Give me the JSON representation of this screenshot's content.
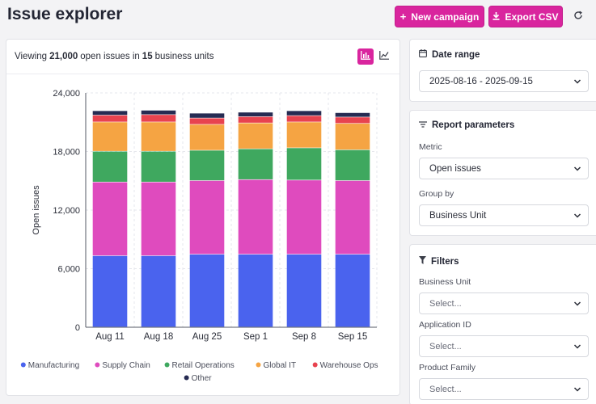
{
  "header": {
    "title": "Issue explorer",
    "new_campaign_label": "New campaign",
    "export_label": "Export CSV"
  },
  "summary": {
    "prefix": "Viewing",
    "count": "21,000",
    "middle": "open issues in",
    "units": "15",
    "suffix": "business units"
  },
  "sidebar": {
    "date_range": {
      "title": "Date range",
      "value": "2025-08-16 - 2025-09-15"
    },
    "report_parameters": {
      "title": "Report parameters",
      "metric_label": "Metric",
      "metric_value": "Open issues",
      "group_by_label": "Group by",
      "group_by_value": "Business Unit"
    },
    "filters": {
      "title": "Filters",
      "items": [
        {
          "label": "Business Unit",
          "placeholder": "Select..."
        },
        {
          "label": "Application ID",
          "placeholder": "Select..."
        },
        {
          "label": "Product Family",
          "placeholder": "Select..."
        }
      ]
    }
  },
  "colors": {
    "accent": "#d9259e"
  },
  "chart_data": {
    "type": "bar",
    "stacked": true,
    "title": "",
    "xlabel": "",
    "ylabel": "Open issues",
    "ylim": [
      0,
      24000
    ],
    "yticks": [
      0,
      6000,
      12000,
      18000,
      24000
    ],
    "ytick_labels": [
      "0",
      "6,000",
      "12,000",
      "18,000",
      "24,000"
    ],
    "grid": true,
    "legend_position": "bottom",
    "categories": [
      "Aug 11",
      "Aug 18",
      "Aug 25",
      "Sep 1",
      "Sep 8",
      "Sep 15"
    ],
    "series": [
      {
        "name": "Manufacturing",
        "color": "#4a63ee",
        "values": [
          7300,
          7300,
          7450,
          7450,
          7450,
          7450
        ]
      },
      {
        "name": "Supply Chain",
        "color": "#df4bbe",
        "values": [
          7550,
          7550,
          7550,
          7650,
          7600,
          7550
        ]
      },
      {
        "name": "Retail Operations",
        "color": "#3fa85f",
        "values": [
          3150,
          3150,
          3100,
          3150,
          3300,
          3150
        ]
      },
      {
        "name": "Global IT",
        "color": "#f5a443",
        "values": [
          3000,
          3000,
          2650,
          2650,
          2650,
          2700
        ]
      },
      {
        "name": "Warehouse Ops",
        "color": "#e8434f",
        "values": [
          700,
          750,
          650,
          650,
          650,
          650
        ]
      },
      {
        "name": "Other",
        "color": "#262b52",
        "values": [
          450,
          450,
          500,
          450,
          500,
          450
        ]
      }
    ]
  }
}
